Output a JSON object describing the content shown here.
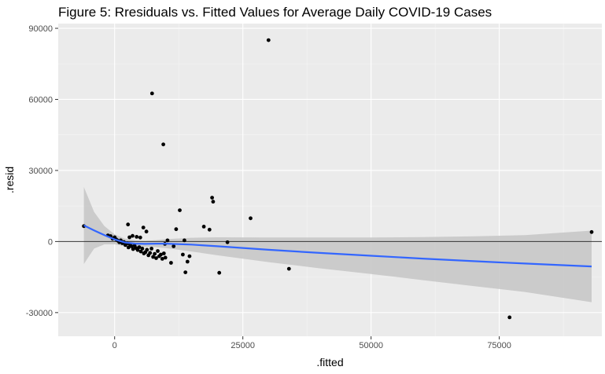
{
  "chart_data": {
    "type": "scatter",
    "title": "Figure 5: Rresiduals vs. Fitted Values for Average Daily COVID-19 Cases",
    "xlabel": ".fitted",
    "ylabel": ".resid",
    "xlim": [
      -11000,
      95000
    ],
    "ylim": [
      -40000,
      92000
    ],
    "x_ticks": [
      0,
      25000,
      50000,
      75000
    ],
    "x_tick_labels": [
      "0",
      "25000",
      "50000",
      "75000"
    ],
    "y_ticks": [
      -30000,
      0,
      30000,
      60000,
      90000
    ],
    "y_tick_labels": [
      "-30000",
      "0",
      "30000",
      "60000",
      "90000"
    ],
    "grid": true,
    "reference_line_y": 0,
    "colors": {
      "panel_background": "#ebebeb",
      "grid_major": "#ffffff",
      "grid_minor": "#f5f5f5",
      "points": "#000000",
      "smooth_line": "#3366ff",
      "ribbon": "#c8c8c8",
      "reference_line": "#333333"
    },
    "points": [
      {
        "x": -6000,
        "y": 6500
      },
      {
        "x": -1300,
        "y": 2600
      },
      {
        "x": -800,
        "y": 2300
      },
      {
        "x": -400,
        "y": 1200
      },
      {
        "x": 0,
        "y": 1800
      },
      {
        "x": 300,
        "y": 900
      },
      {
        "x": 600,
        "y": 400
      },
      {
        "x": 900,
        "y": -300
      },
      {
        "x": 1200,
        "y": 500
      },
      {
        "x": 1500,
        "y": -700
      },
      {
        "x": 1800,
        "y": -200
      },
      {
        "x": 2100,
        "y": -1500
      },
      {
        "x": 2400,
        "y": -800
      },
      {
        "x": 2700,
        "y": -2500
      },
      {
        "x": 3000,
        "y": -1200
      },
      {
        "x": 3300,
        "y": -2000
      },
      {
        "x": 3600,
        "y": -3200
      },
      {
        "x": 3900,
        "y": -1800
      },
      {
        "x": 4200,
        "y": -2800
      },
      {
        "x": 4500,
        "y": -3600
      },
      {
        "x": 4800,
        "y": -2400
      },
      {
        "x": 5100,
        "y": -4200
      },
      {
        "x": 5400,
        "y": -3000
      },
      {
        "x": 5700,
        "y": -5000
      },
      {
        "x": 6000,
        "y": -4500
      },
      {
        "x": 6300,
        "y": -3500
      },
      {
        "x": 6600,
        "y": -5800
      },
      {
        "x": 6900,
        "y": -4800
      },
      {
        "x": 7200,
        "y": -3000
      },
      {
        "x": 7500,
        "y": -6500
      },
      {
        "x": 7800,
        "y": -5200
      },
      {
        "x": 8100,
        "y": -7000
      },
      {
        "x": 8400,
        "y": -4000
      },
      {
        "x": 8700,
        "y": -6200
      },
      {
        "x": 9000,
        "y": -5500
      },
      {
        "x": 9300,
        "y": -7300
      },
      {
        "x": 9600,
        "y": -5000
      },
      {
        "x": 9900,
        "y": -6800
      },
      {
        "x": 2600,
        "y": 7200
      },
      {
        "x": 2900,
        "y": 1800
      },
      {
        "x": 3500,
        "y": 2400
      },
      {
        "x": 4300,
        "y": 2000
      },
      {
        "x": 5000,
        "y": 1700
      },
      {
        "x": 5600,
        "y": 5900
      },
      {
        "x": 6200,
        "y": 4200
      },
      {
        "x": 7300,
        "y": 62500
      },
      {
        "x": 9500,
        "y": 41000
      },
      {
        "x": 9800,
        "y": -1000
      },
      {
        "x": 10300,
        "y": 500
      },
      {
        "x": 11000,
        "y": -9000
      },
      {
        "x": 11500,
        "y": -2000
      },
      {
        "x": 12000,
        "y": 5200
      },
      {
        "x": 12700,
        "y": 13200
      },
      {
        "x": 13300,
        "y": -5500
      },
      {
        "x": 13600,
        "y": 500
      },
      {
        "x": 13800,
        "y": -13000
      },
      {
        "x": 14200,
        "y": -8500
      },
      {
        "x": 14600,
        "y": -6200
      },
      {
        "x": 17400,
        "y": 6300
      },
      {
        "x": 18500,
        "y": 5000
      },
      {
        "x": 19000,
        "y": 18500
      },
      {
        "x": 19200,
        "y": 16800
      },
      {
        "x": 20400,
        "y": -13200
      },
      {
        "x": 22000,
        "y": -300
      },
      {
        "x": 26500,
        "y": 9800
      },
      {
        "x": 30000,
        "y": 85000
      },
      {
        "x": 34000,
        "y": -11500
      },
      {
        "x": 77000,
        "y": -32000
      },
      {
        "x": 93000,
        "y": 4000
      }
    ],
    "smooth": [
      {
        "x": -6000,
        "fit": 6800,
        "lo": -9500,
        "hi": 23000
      },
      {
        "x": -4000,
        "fit": 4700,
        "lo": -3000,
        "hi": 12500
      },
      {
        "x": -2000,
        "fit": 2700,
        "lo": -1200,
        "hi": 6500
      },
      {
        "x": 0,
        "fit": 900,
        "lo": -1200,
        "hi": 3000
      },
      {
        "x": 2000,
        "fit": -400,
        "lo": -2000,
        "hi": 1200
      },
      {
        "x": 4000,
        "fit": -900,
        "lo": -2300,
        "hi": 500
      },
      {
        "x": 6000,
        "fit": -1000,
        "lo": -2300,
        "hi": 300
      },
      {
        "x": 8000,
        "fit": -900,
        "lo": -2400,
        "hi": 600
      },
      {
        "x": 10000,
        "fit": -900,
        "lo": -2800,
        "hi": 1000
      },
      {
        "x": 15000,
        "fit": -1300,
        "lo": -4200,
        "hi": 1600
      },
      {
        "x": 20000,
        "fit": -2000,
        "lo": -5800,
        "hi": 1800
      },
      {
        "x": 30000,
        "fit": -3500,
        "lo": -8700,
        "hi": 1700
      },
      {
        "x": 40000,
        "fit": -4800,
        "lo": -11300,
        "hi": 1700
      },
      {
        "x": 50000,
        "fit": -6000,
        "lo": -13700,
        "hi": 1700
      },
      {
        "x": 60000,
        "fit": -7200,
        "lo": -16300,
        "hi": 1900
      },
      {
        "x": 70000,
        "fit": -8300,
        "lo": -18800,
        "hi": 2200
      },
      {
        "x": 80000,
        "fit": -9300,
        "lo": -21300,
        "hi": 2700
      },
      {
        "x": 93000,
        "fit": -10500,
        "lo": -25600,
        "hi": 4600
      }
    ]
  }
}
